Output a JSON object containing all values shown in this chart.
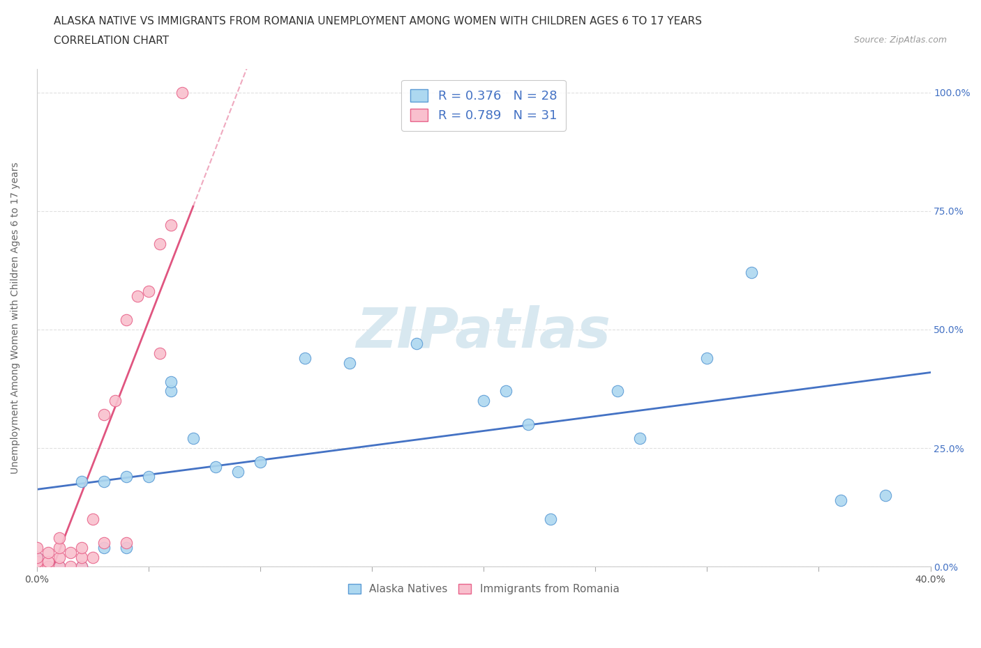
{
  "title_line1": "ALASKA NATIVE VS IMMIGRANTS FROM ROMANIA UNEMPLOYMENT AMONG WOMEN WITH CHILDREN AGES 6 TO 17 YEARS",
  "title_line2": "CORRELATION CHART",
  "source_text": "Source: ZipAtlas.com",
  "ylabel": "Unemployment Among Women with Children Ages 6 to 17 years",
  "xlim": [
    0.0,
    0.4
  ],
  "ylim": [
    0.0,
    1.05
  ],
  "ytick_values": [
    0.0,
    0.25,
    0.5,
    0.75,
    1.0
  ],
  "xtick_values": [
    0.0,
    0.05,
    0.1,
    0.15,
    0.2,
    0.25,
    0.3,
    0.35,
    0.4
  ],
  "alaska_R": 0.376,
  "alaska_N": 28,
  "romania_R": 0.789,
  "romania_N": 31,
  "alaska_color": "#ADD8F0",
  "romania_color": "#F9C0CE",
  "alaska_edge_color": "#5B9BD5",
  "romania_edge_color": "#E8638A",
  "alaska_line_color": "#4472C4",
  "romania_line_color": "#E05580",
  "legend_text_color": "#4472C4",
  "watermark_color": "#D8E8F0",
  "alaska_x": [
    0.0,
    0.01,
    0.02,
    0.02,
    0.03,
    0.03,
    0.04,
    0.04,
    0.05,
    0.06,
    0.06,
    0.07,
    0.08,
    0.09,
    0.1,
    0.12,
    0.14,
    0.17,
    0.2,
    0.21,
    0.22,
    0.23,
    0.26,
    0.27,
    0.3,
    0.32,
    0.36,
    0.38
  ],
  "alaska_y": [
    0.02,
    0.0,
    0.0,
    0.18,
    0.04,
    0.18,
    0.04,
    0.19,
    0.19,
    0.37,
    0.39,
    0.27,
    0.21,
    0.2,
    0.22,
    0.44,
    0.43,
    0.47,
    0.35,
    0.37,
    0.3,
    0.1,
    0.37,
    0.27,
    0.44,
    0.62,
    0.14,
    0.15
  ],
  "romania_x": [
    0.0,
    0.0,
    0.0,
    0.0,
    0.0,
    0.0,
    0.005,
    0.005,
    0.005,
    0.01,
    0.01,
    0.01,
    0.01,
    0.015,
    0.015,
    0.02,
    0.02,
    0.02,
    0.025,
    0.025,
    0.03,
    0.03,
    0.035,
    0.04,
    0.04,
    0.045,
    0.05,
    0.055,
    0.055,
    0.06,
    0.065
  ],
  "romania_y": [
    0.0,
    0.0,
    0.0,
    0.01,
    0.02,
    0.04,
    0.0,
    0.01,
    0.03,
    0.0,
    0.02,
    0.04,
    0.06,
    0.0,
    0.03,
    0.0,
    0.02,
    0.04,
    0.02,
    0.1,
    0.05,
    0.32,
    0.35,
    0.05,
    0.52,
    0.57,
    0.58,
    0.45,
    0.68,
    0.72,
    1.0
  ],
  "grid_color": "#DDDDDD",
  "bg_color": "#FFFFFF",
  "title_fontsize": 11,
  "label_fontsize": 10,
  "tick_fontsize": 10,
  "legend_fontsize": 13
}
